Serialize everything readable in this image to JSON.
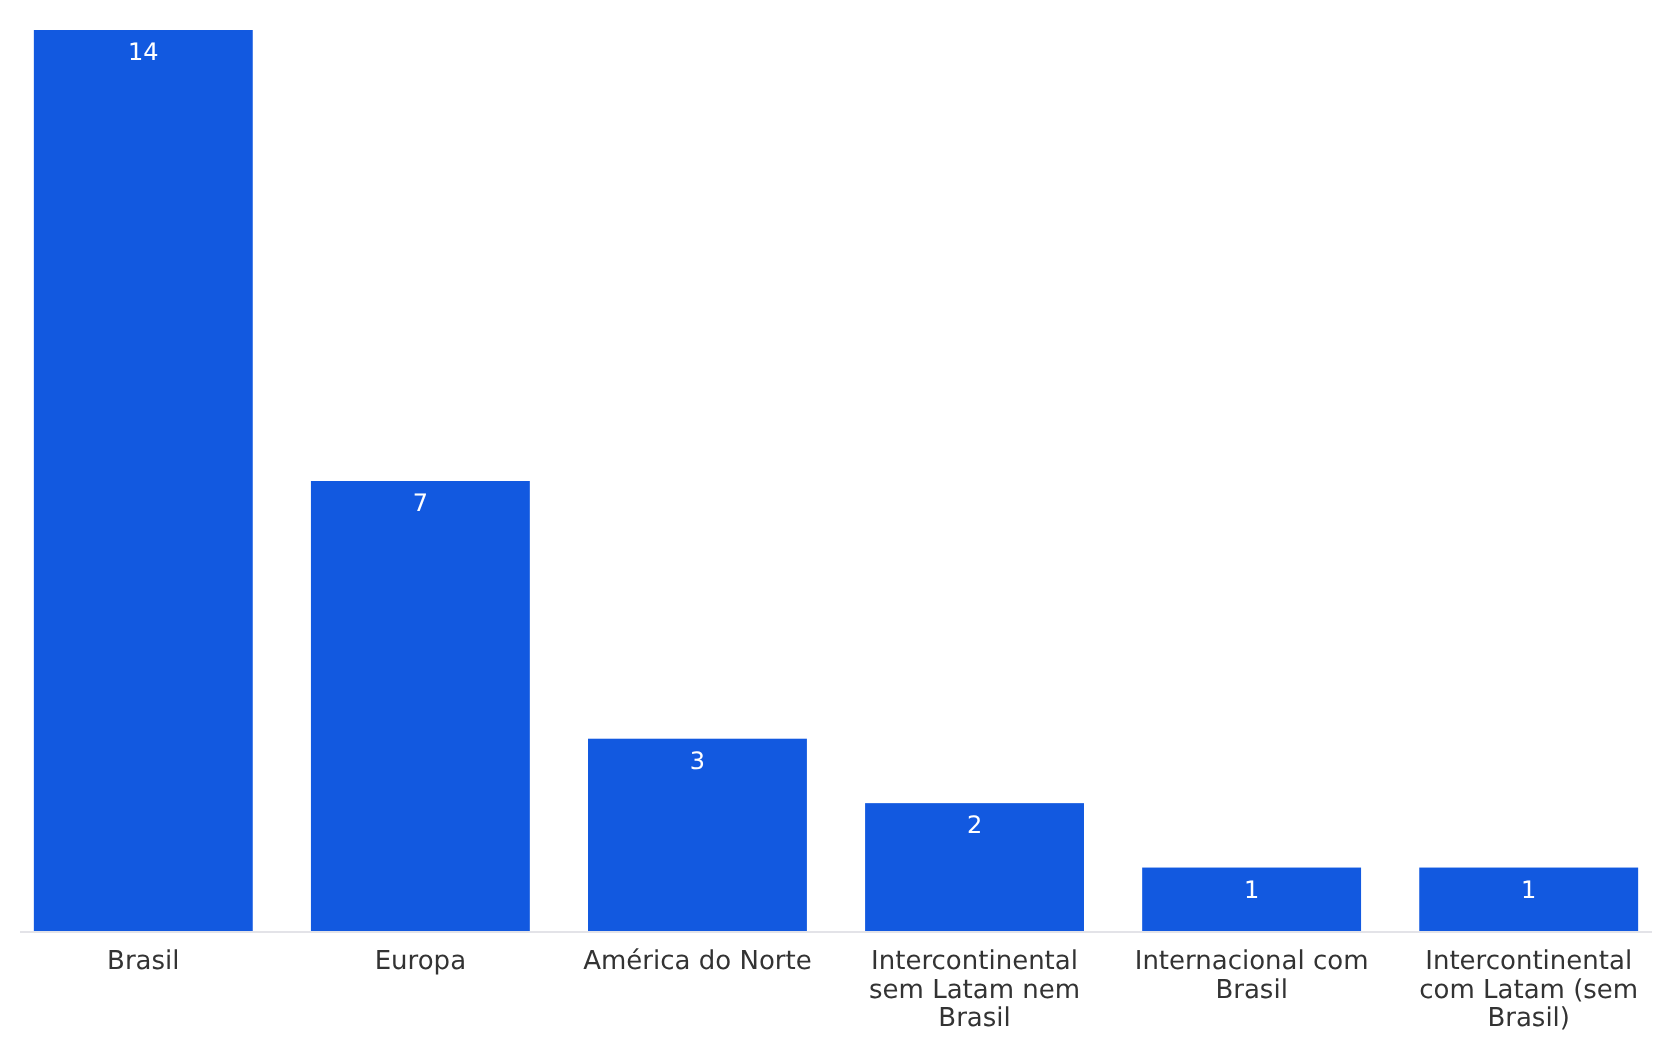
{
  "chart_data": {
    "type": "bar",
    "categories": [
      "Brasil",
      "Europa",
      "América do Norte",
      "Intercontinental sem Latam nem Brasil",
      "Internacional com Brasil",
      "Intercontinental com Latam (sem Brasil)"
    ],
    "values": [
      14,
      7,
      3,
      2,
      1,
      1
    ],
    "color": "#1259e0",
    "data_labels": true,
    "tick_labels": "x",
    "grid": false
  }
}
